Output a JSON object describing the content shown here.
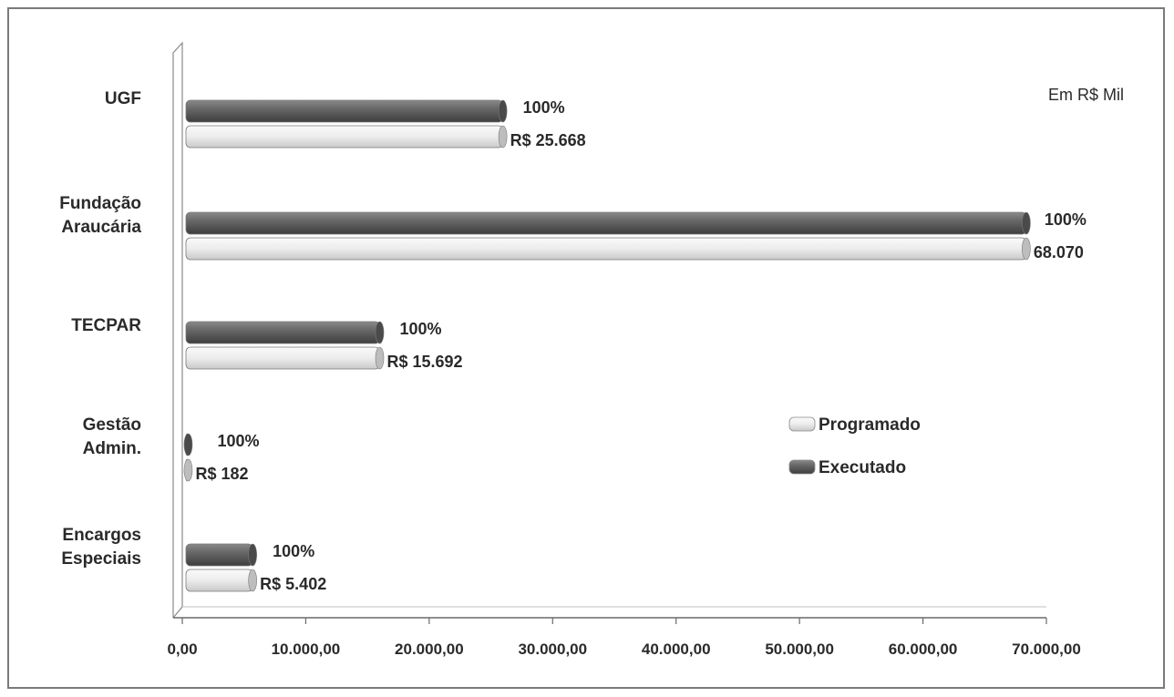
{
  "chart_data": {
    "type": "bar",
    "orientation": "horizontal",
    "unit_note": "Em R$ Mil",
    "categories": [
      "UGF",
      "Fundação Araucária",
      "TECPAR",
      "Gestão Admin.",
      "Encargos Especiais"
    ],
    "category_lines": [
      [
        "UGF"
      ],
      [
        "Fundação",
        "Araucária"
      ],
      [
        "TECPAR"
      ],
      [
        "Gestão",
        "Admin."
      ],
      [
        "Encargos",
        "Especiais"
      ]
    ],
    "series": [
      {
        "name": "Executado",
        "values": [
          25668,
          68070,
          15692,
          182,
          5402
        ],
        "color": "#5a5a5a"
      },
      {
        "name": "Programado",
        "values": [
          25668,
          68070,
          15692,
          182,
          5402
        ],
        "color": "#e8e8e8"
      }
    ],
    "percent_labels": [
      "100%",
      "100%",
      "100%",
      "100%",
      "100%"
    ],
    "value_labels": [
      "R$ 25.668",
      "68.070",
      "R$ 15.692",
      "R$ 182",
      "R$ 5.402"
    ],
    "xlim": [
      0,
      70000
    ],
    "xticks": [
      0,
      10000,
      20000,
      30000,
      40000,
      50000,
      60000,
      70000
    ],
    "xtick_labels": [
      "0,00",
      "10.000,00",
      "20.000,00",
      "30.000,00",
      "40.000,00",
      "50.000,00",
      "60.000,00",
      "70.000,00"
    ],
    "legend": {
      "entries": [
        "Programado",
        "Executado"
      ],
      "placement": "right"
    },
    "grid": false
  }
}
